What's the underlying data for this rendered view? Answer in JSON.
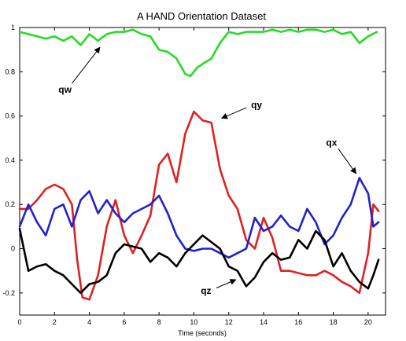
{
  "chart_data": {
    "type": "line",
    "title": "A HAND Orientation Dataset",
    "xlabel": "Time (seconds)",
    "ylabel": "",
    "xlim": [
      0,
      21
    ],
    "ylim": [
      -0.3,
      1.0
    ],
    "xticks": [
      0,
      2,
      4,
      6,
      8,
      10,
      12,
      14,
      16,
      18,
      20
    ],
    "yticks": [
      -0.2,
      0,
      0.2,
      0.4,
      0.6,
      0.8,
      1
    ],
    "ytick_labels": [
      "-0.2",
      "0",
      "0.2",
      "0.4",
      "0.6",
      "0.8",
      "1"
    ],
    "grid": false,
    "legend": "none",
    "series": [
      {
        "name": "qw",
        "color": "#22dd22",
        "x": [
          0,
          0.5,
          1.0,
          1.5,
          2.0,
          2.5,
          3.0,
          3.5,
          4.0,
          4.5,
          5.0,
          5.5,
          6.0,
          6.5,
          7.0,
          7.5,
          8.0,
          8.5,
          9.0,
          9.5,
          9.8,
          10.2,
          10.6,
          11.0,
          11.5,
          12.0,
          12.5,
          13.0,
          13.5,
          14.0,
          14.5,
          15.0,
          15.5,
          16.0,
          16.5,
          17.0,
          17.5,
          18.0,
          18.5,
          19.0,
          19.5,
          20.0,
          20.5
        ],
        "y": [
          0.98,
          0.97,
          0.96,
          0.95,
          0.96,
          0.94,
          0.96,
          0.92,
          0.97,
          0.94,
          0.97,
          0.98,
          0.98,
          0.99,
          0.97,
          0.96,
          0.9,
          0.89,
          0.86,
          0.79,
          0.78,
          0.82,
          0.84,
          0.86,
          0.93,
          0.98,
          0.97,
          0.98,
          0.98,
          0.98,
          0.99,
          0.98,
          0.99,
          0.98,
          0.99,
          0.99,
          0.98,
          0.99,
          0.97,
          0.98,
          0.93,
          0.96,
          0.98
        ]
      },
      {
        "name": "qy",
        "color": "#dd2222",
        "x": [
          0,
          0.5,
          1.0,
          1.5,
          2.0,
          2.5,
          3.0,
          3.3,
          3.6,
          4.0,
          4.5,
          5.0,
          5.5,
          6.0,
          6.5,
          7.0,
          7.5,
          8.0,
          8.5,
          9.0,
          9.5,
          10.0,
          10.5,
          11.0,
          11.5,
          12.0,
          12.5,
          13.0,
          13.5,
          14.0,
          14.5,
          15.0,
          15.5,
          16.0,
          16.5,
          17.0,
          17.5,
          18.0,
          18.5,
          19.0,
          19.5,
          20.0,
          20.3,
          20.6
        ],
        "y": [
          0.18,
          0.18,
          0.22,
          0.27,
          0.29,
          0.27,
          0.2,
          -0.05,
          -0.22,
          -0.23,
          -0.12,
          0.1,
          0.22,
          0.06,
          -0.02,
          0.06,
          0.15,
          0.38,
          0.43,
          0.3,
          0.52,
          0.62,
          0.58,
          0.57,
          0.36,
          0.24,
          0.18,
          0.04,
          0.0,
          0.14,
          0.05,
          -0.1,
          -0.1,
          -0.11,
          -0.12,
          -0.12,
          -0.1,
          -0.12,
          -0.15,
          -0.17,
          -0.2,
          -0.02,
          0.2,
          0.17
        ]
      },
      {
        "name": "qx",
        "color": "#2222cc",
        "x": [
          0,
          0.5,
          1.0,
          1.5,
          2.0,
          2.5,
          3.0,
          3.5,
          4.0,
          4.5,
          5.0,
          5.5,
          6.0,
          6.5,
          7.0,
          7.5,
          8.0,
          8.5,
          9.0,
          9.5,
          10.0,
          10.5,
          11.0,
          11.5,
          12.0,
          12.5,
          13.0,
          13.5,
          14.0,
          14.5,
          15.0,
          15.5,
          16.0,
          16.5,
          17.0,
          17.5,
          18.0,
          18.5,
          19.0,
          19.5,
          20.0,
          20.3,
          20.6
        ],
        "y": [
          0.1,
          0.2,
          0.12,
          0.06,
          0.18,
          0.2,
          0.1,
          0.22,
          0.26,
          0.16,
          0.22,
          0.16,
          0.12,
          0.16,
          0.18,
          0.2,
          0.24,
          0.16,
          0.06,
          0.0,
          -0.01,
          0.0,
          0.0,
          -0.02,
          -0.04,
          -0.02,
          0.0,
          0.14,
          0.08,
          0.1,
          0.15,
          0.1,
          0.08,
          0.18,
          0.12,
          0.02,
          0.06,
          0.14,
          0.2,
          0.32,
          0.25,
          0.1,
          0.12
        ]
      },
      {
        "name": "qz",
        "color": "#000000",
        "x": [
          0,
          0.5,
          1.0,
          1.5,
          2.0,
          2.5,
          3.0,
          3.5,
          4.0,
          4.5,
          5.0,
          5.5,
          6.0,
          6.5,
          7.0,
          7.5,
          8.0,
          8.5,
          9.0,
          9.5,
          10.0,
          10.5,
          11.0,
          11.5,
          12.0,
          12.5,
          13.0,
          13.5,
          14.0,
          14.5,
          15.0,
          15.5,
          16.0,
          16.5,
          17.0,
          17.5,
          18.0,
          18.5,
          19.0,
          19.5,
          20.0,
          20.3,
          20.6
        ],
        "y": [
          0.09,
          -0.1,
          -0.08,
          -0.07,
          -0.1,
          -0.12,
          -0.16,
          -0.2,
          -0.16,
          -0.15,
          -0.12,
          -0.02,
          0.02,
          0.01,
          0.0,
          -0.06,
          -0.02,
          -0.04,
          -0.08,
          -0.02,
          0.02,
          0.06,
          0.03,
          0.0,
          -0.08,
          -0.1,
          -0.17,
          -0.13,
          -0.06,
          -0.02,
          -0.05,
          -0.04,
          0.04,
          0.0,
          0.08,
          0.04,
          -0.08,
          -0.02,
          -0.1,
          -0.15,
          -0.18,
          -0.12,
          -0.05
        ]
      }
    ],
    "annotations": [
      {
        "text": "qw",
        "label_x": 2.6,
        "label_y": 0.72,
        "tip_x": 4.6,
        "tip_y": 0.91
      },
      {
        "text": "qy",
        "label_x": 13.6,
        "label_y": 0.65,
        "tip_x": 11.6,
        "tip_y": 0.59
      },
      {
        "text": "qx",
        "label_x": 17.9,
        "label_y": 0.48,
        "tip_x": 19.3,
        "tip_y": 0.34
      },
      {
        "text": "qz",
        "label_x": 10.7,
        "label_y": -0.19,
        "tip_x": 12.4,
        "tip_y": -0.14
      }
    ]
  }
}
